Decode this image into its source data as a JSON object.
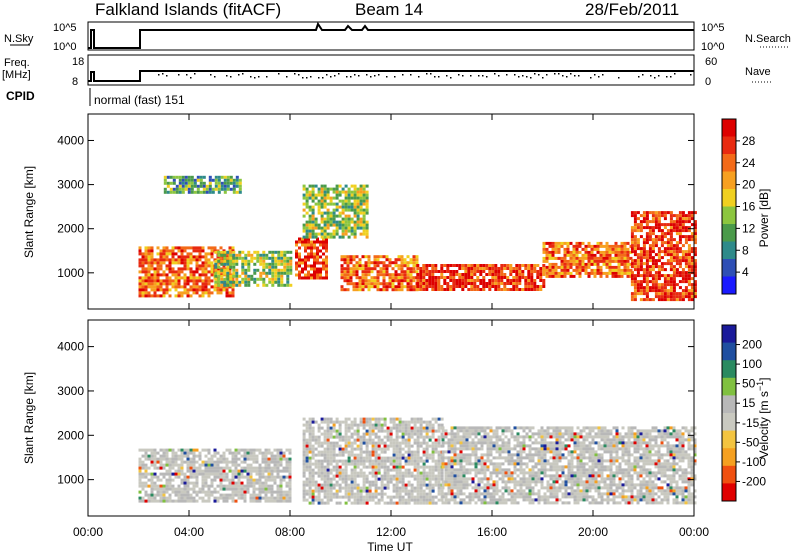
{
  "header": {
    "title": "Falkland Islands (fitACF)",
    "beam": "Beam 14",
    "date": "28/Feb/2011"
  },
  "params": {
    "nsky_label": "N.Sky",
    "nsearch_label": "N.Search",
    "nsky_ticks": [
      "10^5",
      "10^0"
    ],
    "freq_label_1": "Freq.",
    "freq_label_2": "[MHz]",
    "freq_ticks": [
      "18",
      "8"
    ],
    "nave_label": "Nave",
    "nave_ticks": [
      "60",
      "0"
    ],
    "cpid_label": "CPID",
    "cpid_value": "normal (fast) 151"
  },
  "x_axis": {
    "label": "Time UT",
    "ticks": [
      "00:00",
      "04:00",
      "08:00",
      "12:00",
      "16:00",
      "20:00",
      "00:00"
    ]
  },
  "colors": {
    "power": [
      "#1a1aff",
      "#2e4fb5",
      "#2e8a8a",
      "#4a9a4a",
      "#8cc63f",
      "#f0d020",
      "#f7a020",
      "#f36a18",
      "#e82a10",
      "#dd0000"
    ],
    "velocity": [
      "#e00000",
      "#f05010",
      "#f5a020",
      "#f3c440",
      "#c9c9c0",
      "#b8b8b8",
      "#80c040",
      "#2a8a60",
      "#1f4fa0",
      "#1a1a9a"
    ]
  },
  "chart_data": [
    {
      "type": "heatmap",
      "panel": "power",
      "ylabel": "Slant Range [km]",
      "xlim": [
        0,
        24
      ],
      "ylim": [
        180,
        4600
      ],
      "yticks": [
        1000,
        2000,
        3000,
        4000
      ],
      "colorbar": {
        "label": "Power [dB]",
        "ticks": [
          "28",
          "24",
          "20",
          "16",
          "12",
          "8",
          "4"
        ],
        "range": [
          0,
          30
        ]
      },
      "regions": [
        {
          "t": [
            2.0,
            5.8
          ],
          "r": [
            500,
            1600
          ],
          "level": 24
        },
        {
          "t": [
            5.0,
            8.0
          ],
          "r": [
            700,
            1500
          ],
          "level": 14
        },
        {
          "t": [
            8.2,
            9.5
          ],
          "r": [
            900,
            1800
          ],
          "level": 26
        },
        {
          "t": [
            10.0,
            13.0
          ],
          "r": [
            600,
            1400
          ],
          "level": 22
        },
        {
          "t": [
            13.0,
            18.0
          ],
          "r": [
            600,
            1200
          ],
          "level": 26
        },
        {
          "t": [
            18.0,
            21.5
          ],
          "r": [
            900,
            1700
          ],
          "level": 24
        },
        {
          "t": [
            21.5,
            24.0
          ],
          "r": [
            400,
            2400
          ],
          "level": 26
        },
        {
          "t": [
            3.0,
            6.0
          ],
          "r": [
            2800,
            3200
          ],
          "level": 10
        },
        {
          "t": [
            8.5,
            11.0
          ],
          "r": [
            1800,
            3000
          ],
          "level": 12
        }
      ]
    },
    {
      "type": "heatmap",
      "panel": "velocity",
      "ylabel": "Slant Range [km]",
      "xlim": [
        0,
        24
      ],
      "ylim": [
        180,
        4600
      ],
      "yticks": [
        1000,
        2000,
        3000,
        4000
      ],
      "colorbar": {
        "label": "Velocity [m s-1]",
        "ticks": [
          "200",
          "100",
          "50",
          "15",
          "-15",
          "-50",
          "-100",
          "-200"
        ],
        "range": [
          -250,
          250
        ]
      },
      "regions": [
        {
          "t": [
            2.0,
            8.0
          ],
          "r": [
            500,
            1700
          ],
          "value": 0
        },
        {
          "t": [
            8.5,
            14.0
          ],
          "r": [
            500,
            2400
          ],
          "value": 0
        },
        {
          "t": [
            14.0,
            24.0
          ],
          "r": [
            500,
            2200
          ],
          "value": 0
        }
      ]
    }
  ]
}
